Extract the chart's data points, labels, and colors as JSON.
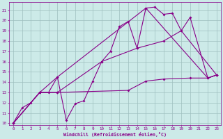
{
  "xlabel": "Windchill (Refroidissement éolien,°C)",
  "ylabel": "",
  "xlim": [
    -0.5,
    23.5
  ],
  "ylim": [
    9.8,
    21.8
  ],
  "yticks": [
    10,
    11,
    12,
    13,
    14,
    15,
    16,
    17,
    18,
    19,
    20,
    21
  ],
  "xticks": [
    0,
    1,
    2,
    3,
    4,
    5,
    6,
    7,
    8,
    9,
    10,
    11,
    12,
    13,
    14,
    15,
    16,
    17,
    18,
    19,
    20,
    21,
    22,
    23
  ],
  "bg_color": "#cceae8",
  "grid_color": "#9fbfbf",
  "line_color": "#880088",
  "lines": [
    {
      "x": [
        0,
        1,
        2,
        3,
        4,
        5,
        6,
        7,
        8,
        9,
        10,
        11,
        12,
        13,
        14,
        15,
        16,
        17,
        18,
        19,
        20,
        22,
        23
      ],
      "y": [
        10.0,
        11.5,
        12.0,
        13.0,
        13.0,
        14.5,
        10.3,
        11.9,
        12.2,
        14.1,
        16.0,
        17.0,
        19.4,
        19.9,
        17.3,
        21.2,
        21.3,
        20.6,
        20.7,
        19.0,
        20.3,
        14.4,
        14.7
      ]
    },
    {
      "x": [
        0,
        3,
        5,
        13,
        15,
        17,
        20,
        22,
        23
      ],
      "y": [
        10.0,
        13.0,
        13.0,
        13.2,
        14.1,
        14.3,
        14.4,
        14.4,
        14.7
      ]
    },
    {
      "x": [
        0,
        3,
        5,
        10,
        14,
        17,
        19,
        23
      ],
      "y": [
        10.0,
        13.0,
        13.0,
        16.0,
        17.3,
        18.0,
        19.0,
        14.7
      ]
    },
    {
      "x": [
        0,
        3,
        5,
        15,
        22,
        23
      ],
      "y": [
        10.0,
        13.0,
        14.5,
        21.2,
        14.4,
        14.7
      ]
    }
  ]
}
